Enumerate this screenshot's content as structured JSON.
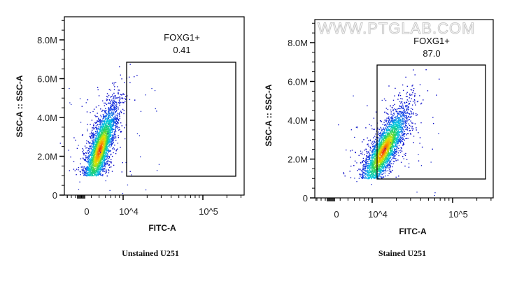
{
  "watermark": "WWW.PTGLAB.COM",
  "chart_data": [
    {
      "type": "scatter",
      "title": "Unstained U251",
      "xlabel": "FITC-A",
      "ylabel": "SSC-A :: SSC-A",
      "x_scale": "biexponential",
      "x_tick_labels": [
        "0",
        "10^4",
        "10^5"
      ],
      "y_tick_labels": [
        "0",
        "2.0M",
        "4.0M",
        "6.0M",
        "8.0M"
      ],
      "ylim": [
        0,
        9200000
      ],
      "gate": {
        "name": "FOXG1+",
        "value": "0.41",
        "x_range": [
          11000,
          250000
        ],
        "y_range": [
          1000000,
          6800000
        ]
      },
      "population": {
        "fitc_center": 5000,
        "ssc_center": 2600000,
        "coloring": "density (blue-green-yellow-red)"
      }
    },
    {
      "type": "scatter",
      "title": "Stained U251",
      "xlabel": "FITC-A",
      "ylabel": "SSC-A :: SSC-A",
      "x_scale": "biexponential",
      "x_tick_labels": [
        "0",
        "10^4",
        "10^5"
      ],
      "y_tick_labels": [
        "0",
        "2.0M",
        "4.0M",
        "6.0M",
        "8.0M"
      ],
      "ylim": [
        0,
        9200000
      ],
      "gate": {
        "name": "FOXG1+",
        "value": "87.0",
        "x_range": [
          11000,
          250000
        ],
        "y_range": [
          1000000,
          6800000
        ]
      },
      "population": {
        "fitc_center": 14000,
        "ssc_center": 2600000,
        "coloring": "density (blue-green-yellow-red)"
      }
    }
  ]
}
